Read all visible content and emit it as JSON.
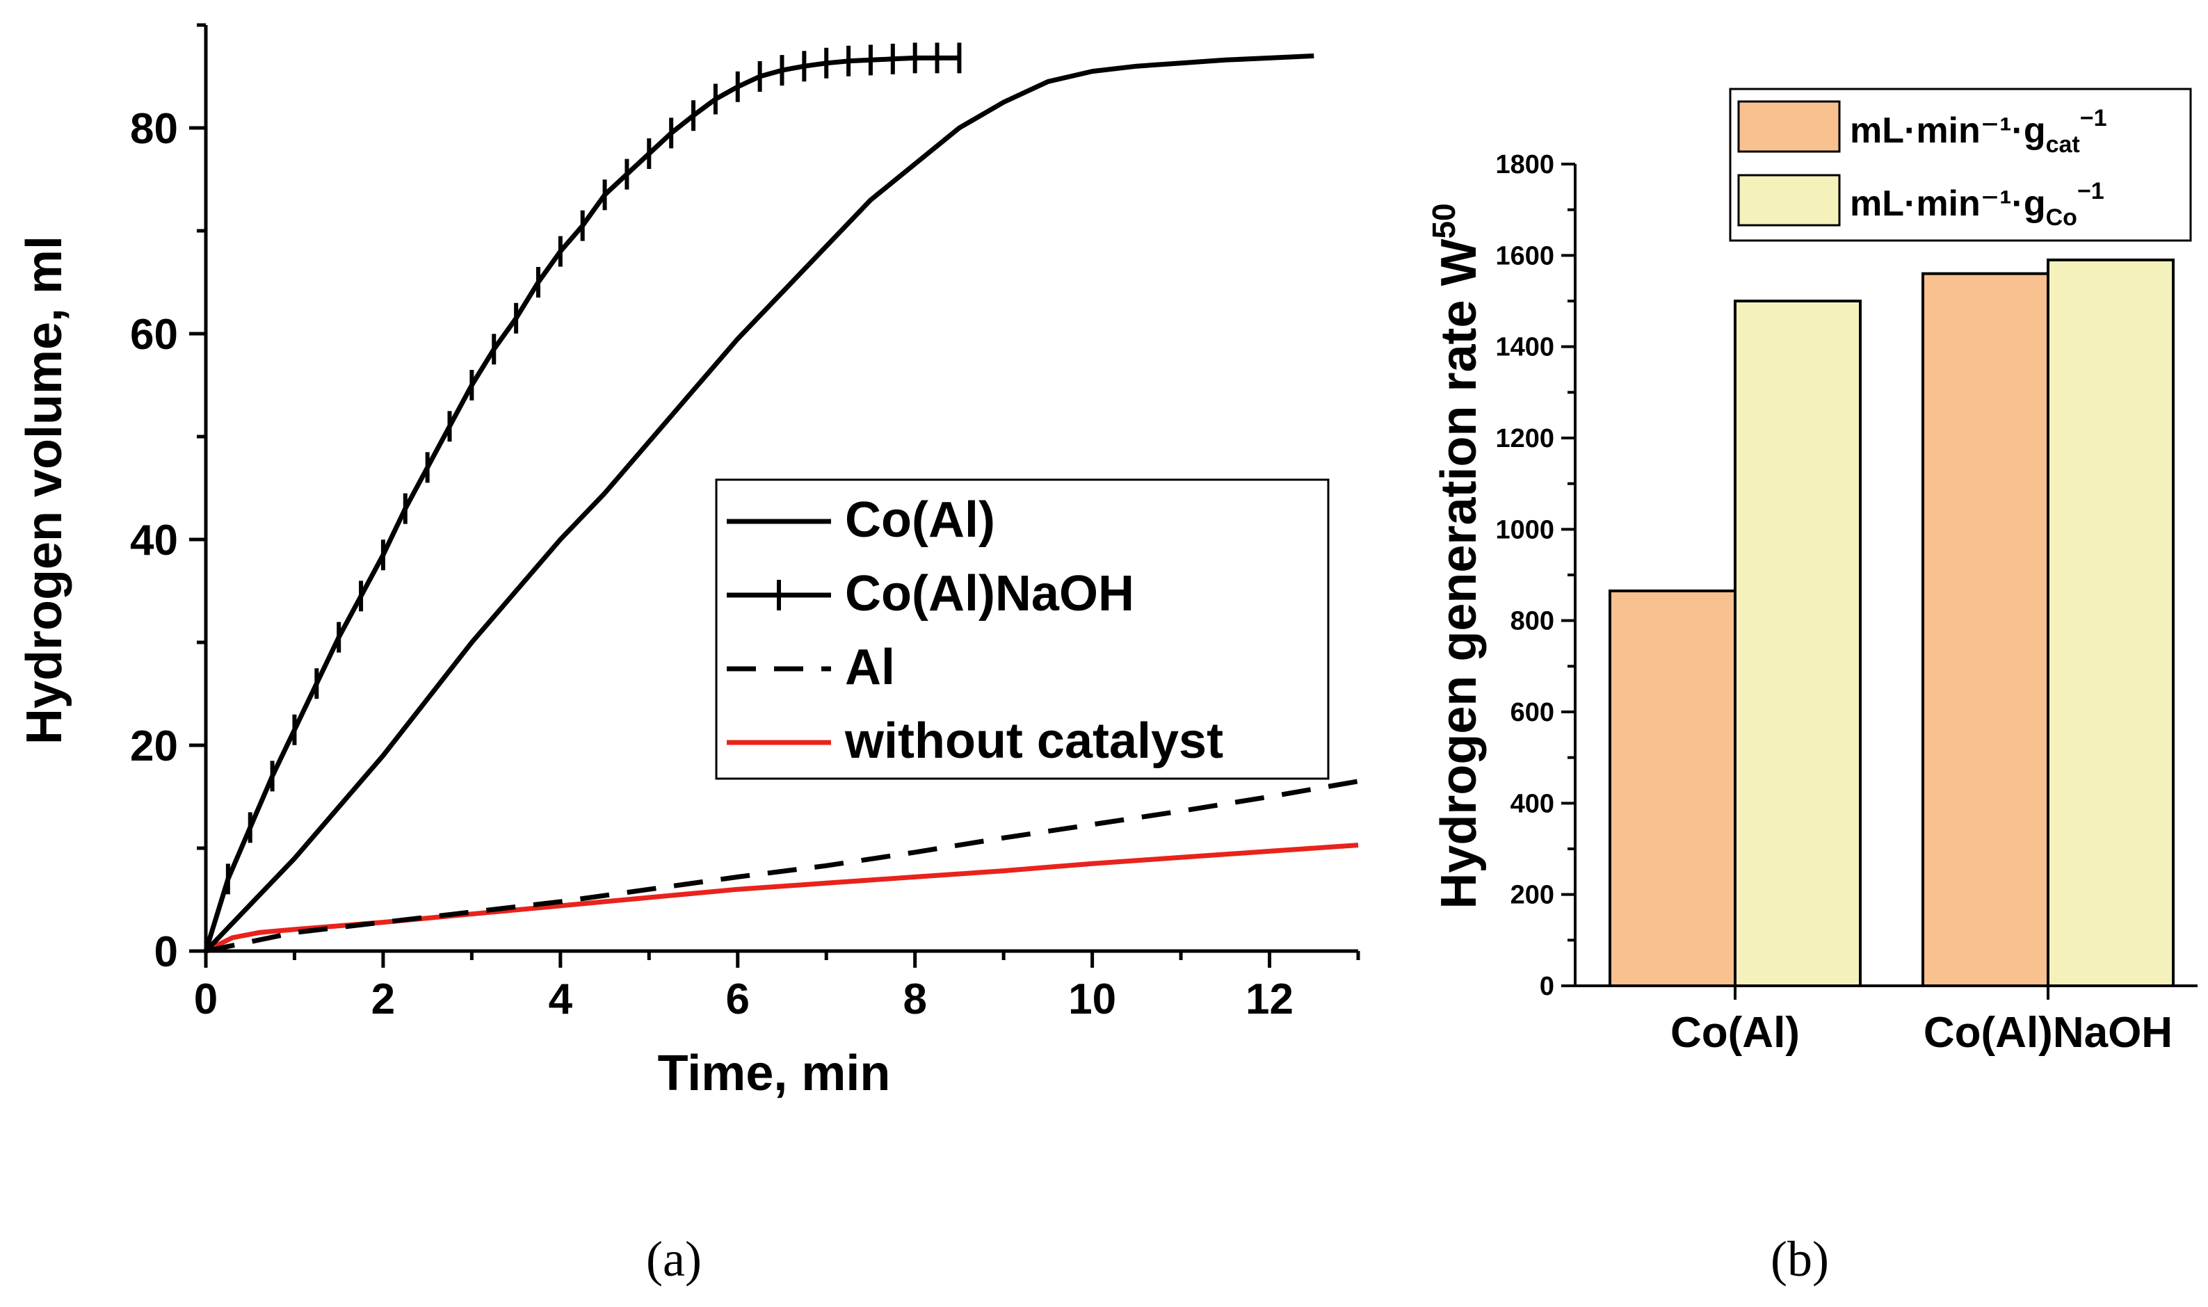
{
  "chart_data": [
    {
      "panel": "(a)",
      "type": "line",
      "xlabel": "Time, min",
      "ylabel": "Hydrogen volume, ml",
      "xlim": [
        0,
        13
      ],
      "ylim": [
        0,
        90
      ],
      "xticks": [
        "0",
        "2",
        "4",
        "6",
        "8",
        "10",
        "12"
      ],
      "yticks": [
        "0",
        "20",
        "40",
        "60",
        "80"
      ],
      "legend_position": "center-right",
      "series": [
        {
          "name": "Co(Al)",
          "style": "solid",
          "marker": "none",
          "color": "#000000",
          "x": [
            0,
            0.5,
            1,
            1.5,
            2,
            2.5,
            3,
            3.5,
            4,
            4.5,
            5,
            5.5,
            6,
            6.5,
            7,
            7.5,
            8,
            8.5,
            9,
            9.5,
            10,
            10.5,
            11,
            11.5,
            12,
            12.5
          ],
          "y": [
            0,
            4.5,
            9,
            14,
            19,
            24.5,
            30,
            35,
            40,
            44.5,
            49.5,
            54.5,
            59.5,
            64,
            68.5,
            73,
            76.5,
            80,
            82.5,
            84.5,
            85.5,
            86,
            86.3,
            86.6,
            86.8,
            87
          ]
        },
        {
          "name": "Co(Al)NaOH",
          "style": "solid",
          "marker": "vertical-tick",
          "color": "#000000",
          "x": [
            0,
            0.25,
            0.5,
            0.75,
            1,
            1.25,
            1.5,
            1.75,
            2,
            2.25,
            2.5,
            2.75,
            3,
            3.25,
            3.5,
            3.75,
            4,
            4.25,
            4.5,
            4.75,
            5,
            5.25,
            5.5,
            5.75,
            6,
            6.25,
            6.5,
            6.75,
            7,
            7.25,
            7.5,
            7.75,
            8,
            8.25,
            8.5
          ],
          "y": [
            0,
            7,
            12,
            17,
            21.5,
            26,
            30.5,
            34.5,
            38.5,
            43,
            47,
            51,
            55,
            58.5,
            61.5,
            65,
            68,
            70.5,
            73.5,
            75.5,
            77.5,
            79.5,
            81.2,
            82.8,
            84,
            85,
            85.6,
            86,
            86.3,
            86.5,
            86.6,
            86.7,
            86.8,
            86.8,
            86.8
          ]
        },
        {
          "name": "Al",
          "style": "dashed",
          "marker": "none",
          "color": "#000000",
          "x": [
            0,
            1,
            2,
            3,
            4,
            5,
            6,
            7,
            8,
            9,
            10,
            11,
            12,
            13
          ],
          "y": [
            0,
            1.8,
            2.8,
            3.8,
            4.8,
            6,
            7.2,
            8.3,
            9.6,
            11,
            12.3,
            13.6,
            15,
            16.5
          ]
        },
        {
          "name": "without catalyst",
          "style": "solid",
          "marker": "none",
          "color": "#e8231c",
          "x": [
            0,
            0.3,
            0.6,
            1,
            2,
            3,
            4,
            5,
            6,
            7,
            8,
            9,
            10,
            11,
            12,
            13
          ],
          "y": [
            0,
            1.3,
            1.8,
            2.1,
            2.8,
            3.6,
            4.4,
            5.2,
            6,
            6.6,
            7.2,
            7.8,
            8.5,
            9.1,
            9.7,
            10.3
          ]
        }
      ]
    },
    {
      "panel": "(b)",
      "type": "bar",
      "ylabel": "Hydrogen generation rate  W",
      "ylabel_sup": "50",
      "ylim": [
        0,
        1800
      ],
      "yticks": [
        "0",
        "200",
        "400",
        "600",
        "800",
        "1000",
        "1200",
        "1400",
        "1600",
        "1800"
      ],
      "categories": [
        "Co(Al)",
        "Co(Al)NaOH"
      ],
      "legend_position": "top-right",
      "series": [
        {
          "name": "mL·min⁻¹·g",
          "name_sub": "cat",
          "name_sup": "−1",
          "color": "#f9c190",
          "values": [
            865,
            1560
          ]
        },
        {
          "name": "mL·min⁻¹·g",
          "name_sub": "Co",
          "name_sup": "−1",
          "color": "#f4f1bb",
          "values": [
            1500,
            1590
          ]
        }
      ]
    }
  ]
}
